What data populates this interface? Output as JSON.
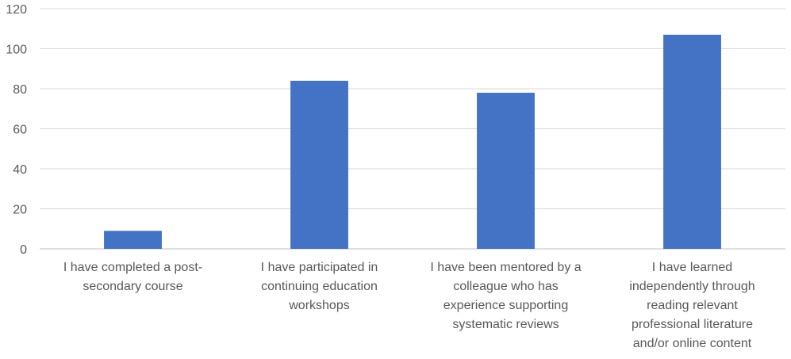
{
  "chart_data": {
    "type": "bar",
    "categories": [
      [
        "I have completed a post-",
        "secondary course"
      ],
      [
        "I have participated in",
        "continuing education",
        "workshops"
      ],
      [
        "I have been mentored by a",
        "colleague who has",
        "experience supporting",
        "systematic reviews"
      ],
      [
        "I have learned",
        "independently through",
        "reading relevant",
        "professional literature",
        "and/or online content"
      ]
    ],
    "values": [
      9,
      84,
      78,
      107
    ],
    "yticks": [
      "0",
      "20",
      "40",
      "60",
      "80",
      "100",
      "120"
    ],
    "ylim": [
      0,
      120
    ],
    "grid": true,
    "bar_color": "#4472C4",
    "grid_color": "#D9D9D9",
    "axis_color": "#BFBFBF",
    "text_color": "#595959"
  }
}
